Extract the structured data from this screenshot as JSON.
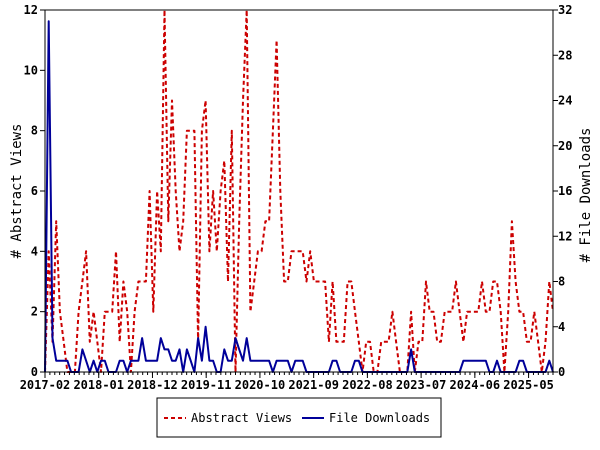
{
  "chart_data": {
    "type": "line",
    "title": "",
    "x_tick_labels": [
      "2017-02",
      "2018-01",
      "2018-12",
      "2019-11",
      "2020-10",
      "2021-09",
      "2022-08",
      "2023-07",
      "2024-06",
      "2025-05"
    ],
    "x_range": [
      "2017-02",
      "2025-10"
    ],
    "y_left": {
      "label": "# Abstract Views",
      "range": [
        0,
        12
      ],
      "ticks": [
        0,
        2,
        4,
        6,
        8,
        10,
        12
      ]
    },
    "y_right": {
      "label": "# File Downloads",
      "range": [
        0,
        32
      ],
      "ticks": [
        0,
        4,
        8,
        12,
        16,
        20,
        24,
        28,
        32
      ]
    },
    "legend_position": "bottom-center",
    "grid": false,
    "series": [
      {
        "name": "Abstract Views",
        "axis": "left",
        "color": "#cc0000",
        "style": "dashed",
        "values": [
          0,
          4,
          1,
          5,
          2,
          1,
          0,
          0,
          0,
          2,
          3,
          4,
          1,
          2,
          1,
          0,
          2,
          2,
          2,
          4,
          1,
          3,
          2,
          0,
          2,
          3,
          3,
          3,
          6,
          2,
          6,
          4,
          12,
          5,
          9,
          6,
          4,
          5,
          8,
          8,
          8,
          1,
          8,
          9,
          4,
          6,
          4,
          6,
          7,
          3,
          8,
          0,
          5,
          9,
          12,
          2,
          3,
          4,
          4,
          5,
          5,
          8,
          11,
          6,
          3,
          3,
          4,
          4,
          4,
          4,
          3,
          4,
          3,
          3,
          3,
          3,
          1,
          3,
          1,
          1,
          1,
          3,
          3,
          2,
          1,
          0,
          1,
          1,
          0,
          0,
          1,
          1,
          1,
          2,
          1,
          0,
          0,
          0,
          2,
          0,
          1,
          1,
          3,
          2,
          2,
          1,
          1,
          2,
          2,
          2,
          3,
          2,
          1,
          2,
          2,
          2,
          2,
          3,
          2,
          2,
          3,
          3,
          2,
          0,
          2,
          5,
          3,
          2,
          2,
          1,
          1,
          2,
          1,
          0,
          1,
          3,
          2
        ]
      },
      {
        "name": "File Downloads",
        "axis": "right",
        "color": "#000099",
        "style": "solid",
        "values": [
          0,
          31,
          3,
          1,
          1,
          1,
          1,
          0,
          0,
          0,
          2,
          1,
          0,
          1,
          0,
          1,
          1,
          0,
          0,
          0,
          1,
          1,
          0,
          1,
          1,
          1,
          3,
          1,
          1,
          1,
          1,
          3,
          2,
          2,
          1,
          1,
          2,
          0,
          2,
          1,
          0,
          3,
          1,
          4,
          1,
          1,
          0,
          0,
          2,
          1,
          1,
          3,
          2,
          1,
          3,
          1,
          1,
          1,
          1,
          1,
          1,
          0,
          1,
          1,
          1,
          1,
          0,
          1,
          1,
          1,
          0,
          0,
          0,
          0,
          0,
          0,
          0,
          1,
          1,
          0,
          0,
          0,
          0,
          1,
          1,
          0,
          0,
          0,
          0,
          0,
          0,
          0,
          0,
          0,
          0,
          0,
          0,
          0,
          2,
          0,
          0,
          0,
          0,
          0,
          0,
          0,
          0,
          0,
          0,
          0,
          0,
          0,
          1,
          1,
          1,
          1,
          1,
          1,
          1,
          0,
          0,
          1,
          0,
          0,
          0,
          0,
          0,
          1,
          1,
          0,
          0,
          0,
          0,
          0,
          0,
          1,
          0
        ]
      }
    ]
  }
}
